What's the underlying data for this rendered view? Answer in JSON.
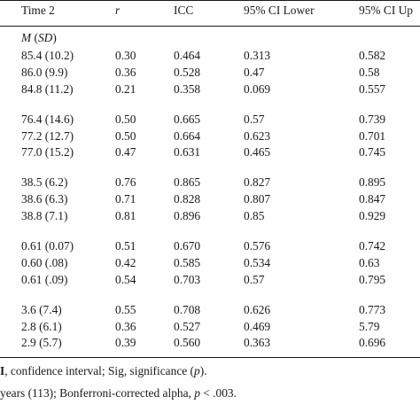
{
  "table": {
    "headers": {
      "time2": "Time 2",
      "r": "r",
      "icc": "ICC",
      "ci_lower": "95% CI Lower",
      "ci_upper": "95% CI Up"
    },
    "subheader": {
      "m": "M",
      "sd": "SD"
    },
    "groups": [
      {
        "rows": [
          {
            "time2": "85.4 (10.2)",
            "r": "0.30",
            "icc": "0.464",
            "lower": "0.313",
            "upper": "0.582"
          },
          {
            "time2": "86.0 (9.9)",
            "r": "0.36",
            "icc": "0.528",
            "lower": "0.47",
            "upper": "0.58"
          },
          {
            "time2": "84.8 (11.2)",
            "r": "0.21",
            "icc": "0.358",
            "lower": "0.069",
            "upper": "0.557"
          }
        ]
      },
      {
        "rows": [
          {
            "time2": "76.4 (14.6)",
            "r": "0.50",
            "icc": "0.665",
            "lower": "0.57",
            "upper": "0.739"
          },
          {
            "time2": "77.2 (12.7)",
            "r": "0.50",
            "icc": "0.664",
            "lower": "0.623",
            "upper": "0.701"
          },
          {
            "time2": "77.0 (15.2)",
            "r": "0.47",
            "icc": "0.631",
            "lower": "0.465",
            "upper": "0.745"
          }
        ]
      },
      {
        "rows": [
          {
            "time2": "38.5 (6.2)",
            "r": "0.76",
            "icc": "0.865",
            "lower": "0.827",
            "upper": "0.895"
          },
          {
            "time2": "38.6 (6.3)",
            "r": "0.71",
            "icc": "0.828",
            "lower": "0.807",
            "upper": "0.847"
          },
          {
            "time2": "38.8 (7.1)",
            "r": "0.81",
            "icc": "0.896",
            "lower": "0.85",
            "upper": "0.929"
          }
        ]
      },
      {
        "rows": [
          {
            "time2": "0.61 (0.07)",
            "r": "0.51",
            "icc": "0.670",
            "lower": "0.576",
            "upper": "0.742"
          },
          {
            "time2": "0.60 (.08)",
            "r": "0.42",
            "icc": "0.585",
            "lower": "0.534",
            "upper": "0.63"
          },
          {
            "time2": "0.61 (.09)",
            "r": "0.54",
            "icc": "0.703",
            "lower": "0.57",
            "upper": "0.795"
          }
        ]
      },
      {
        "rows": [
          {
            "time2": "3.6 (7.4)",
            "r": "0.55",
            "icc": "0.708",
            "lower": "0.626",
            "upper": "0.773"
          },
          {
            "time2": "2.8 (6.1)",
            "r": "0.36",
            "icc": "0.527",
            "lower": "0.469",
            "upper": "5.79"
          },
          {
            "time2": "2.9 (5.7)",
            "r": "0.39",
            "icc": "0.560",
            "lower": "0.363",
            "upper": "0.696"
          }
        ]
      }
    ]
  },
  "footnotes": {
    "line1_bold": "I",
    "line1_rest": ", confidence interval; Sig, significance (",
    "line1_p": "p",
    "line1_end": ").",
    "line2_start": "years (113); Bonferroni-corrected alpha, ",
    "line2_p": "p",
    "line2_end": " < .003."
  }
}
